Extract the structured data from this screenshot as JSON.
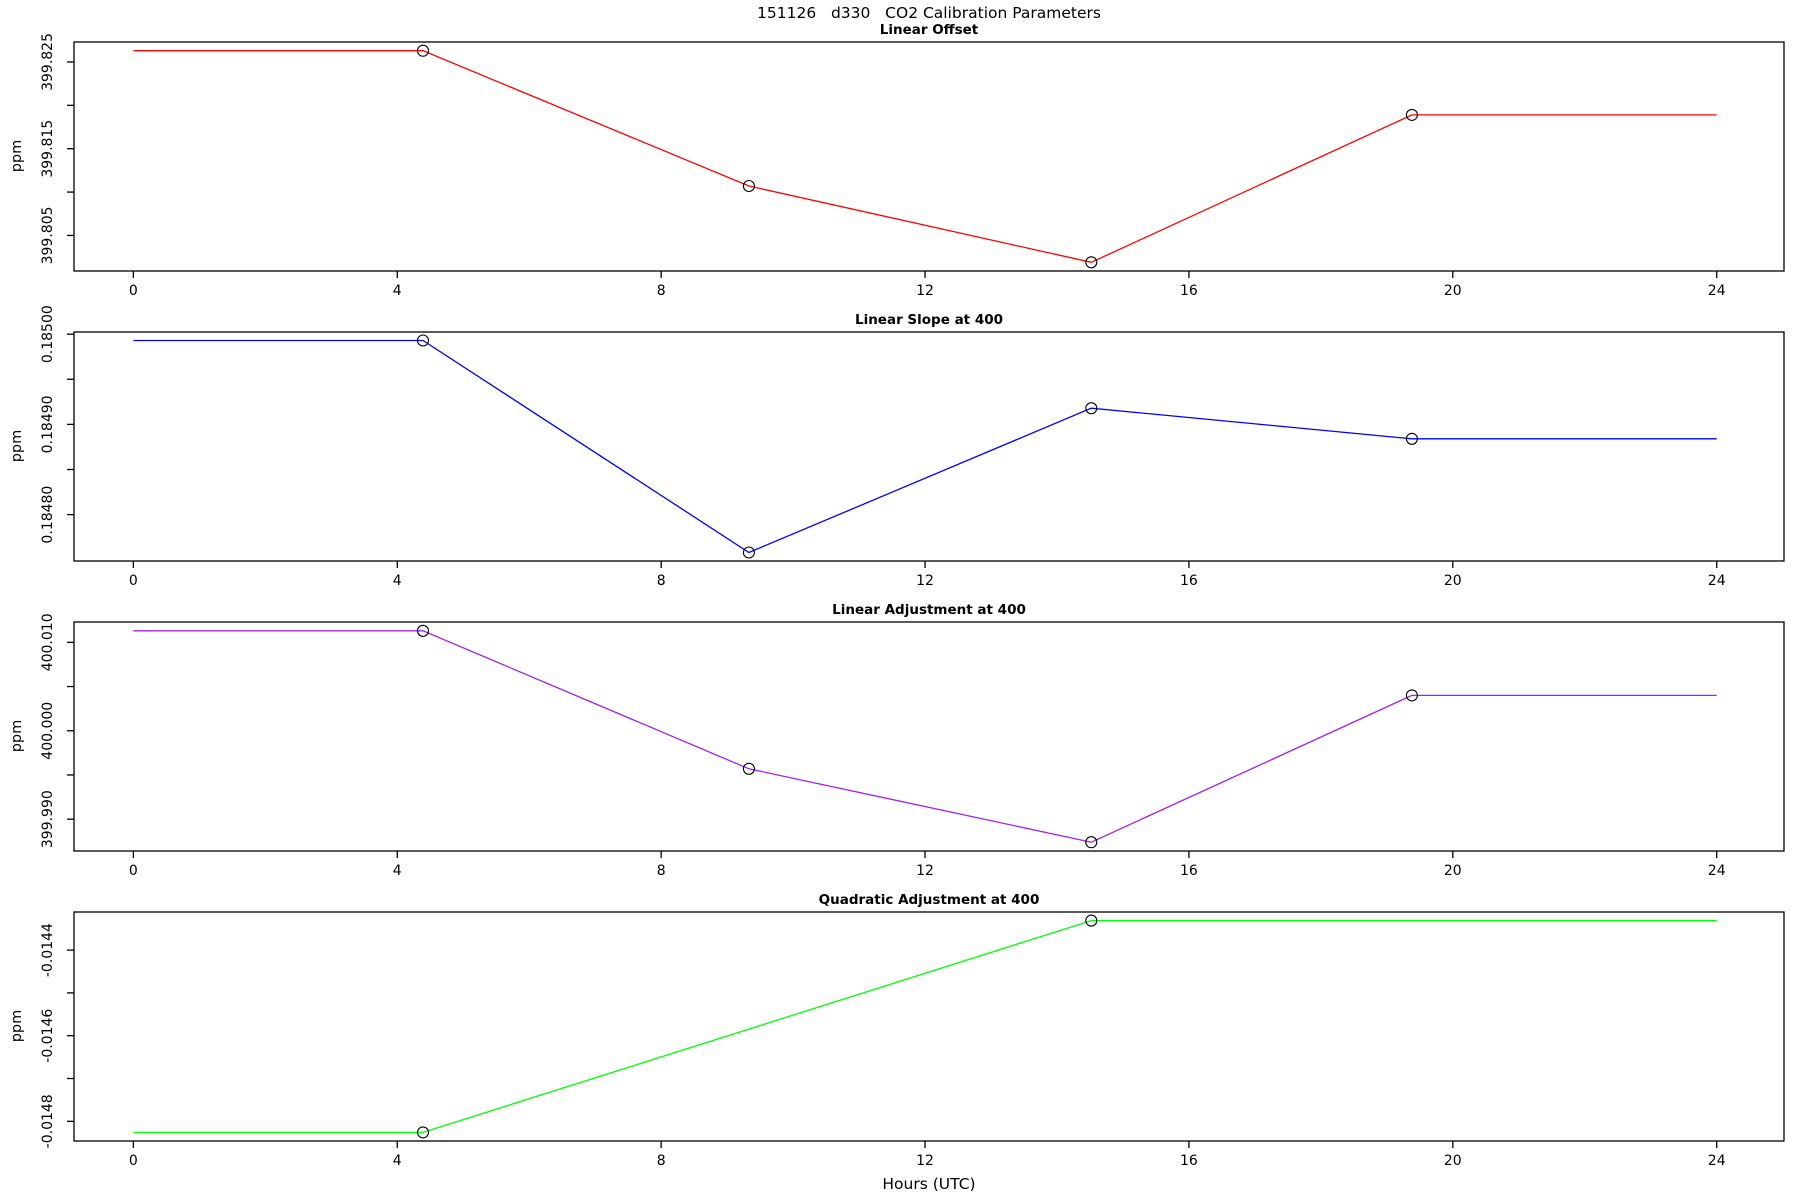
{
  "chart_data": {
    "type": "line",
    "title": "151126   d330   CO2 Calibration Parameters",
    "xlabel": "Hours (UTC)",
    "x_ticks": [
      0,
      4,
      8,
      12,
      16,
      20,
      24
    ],
    "xlim": [
      -0.9,
      25.02
    ],
    "grid": "off",
    "legend": "none",
    "axis_color": "#000000",
    "background_color": "#ffffff",
    "panels": [
      {
        "title": "Linear Offset",
        "ylabel": "ppm",
        "color": "#FF0000",
        "ylim": [
          399.8009,
          399.8273
        ],
        "yticks": [
          {
            "v": 399.805,
            "label": "399.805"
          },
          {
            "v": 399.81,
            "label": ""
          },
          {
            "v": 399.815,
            "label": "399.815"
          },
          {
            "v": 399.82,
            "label": ""
          },
          {
            "v": 399.825,
            "label": "399.825"
          }
        ],
        "line": [
          [
            0,
            399.8263
          ],
          [
            4.39,
            399.8263
          ],
          [
            9.33,
            399.8107
          ],
          [
            14.52,
            399.8019
          ],
          [
            19.38,
            399.8189
          ],
          [
            24,
            399.8189
          ]
        ],
        "points": [
          [
            4.39,
            399.8263
          ],
          [
            9.33,
            399.8107
          ],
          [
            14.52,
            399.8019
          ],
          [
            19.38,
            399.8189
          ]
        ]
      },
      {
        "title": "Linear Slope at 400",
        "ylabel": "ppm",
        "color": "#0000FF",
        "ylim": [
          0.1847486,
          0.1850024
        ],
        "yticks": [
          {
            "v": 0.1848,
            "label": "0.18480"
          },
          {
            "v": 0.18485,
            "label": ""
          },
          {
            "v": 0.1849,
            "label": "0.18490"
          },
          {
            "v": 0.18495,
            "label": ""
          },
          {
            "v": 0.185,
            "label": "0.18500"
          }
        ],
        "line": [
          [
            0,
            0.184993
          ],
          [
            4.39,
            0.184993
          ],
          [
            9.33,
            0.184758
          ],
          [
            14.52,
            0.184918
          ],
          [
            19.38,
            0.184884
          ],
          [
            24,
            0.184884
          ]
        ],
        "points": [
          [
            4.39,
            0.184993
          ],
          [
            9.33,
            0.184758
          ],
          [
            14.52,
            0.184918
          ],
          [
            19.38,
            0.184884
          ]
        ]
      },
      {
        "title": "Linear Adjustment at 400",
        "ylabel": "ppm",
        "color": "#A020F0",
        "ylim": [
          399.9864,
          400.0123
        ],
        "yticks": [
          {
            "v": 399.99,
            "label": "399.990"
          },
          {
            "v": 399.995,
            "label": ""
          },
          {
            "v": 400.0,
            "label": "400.000"
          },
          {
            "v": 400.005,
            "label": ""
          },
          {
            "v": 400.01,
            "label": "400.010"
          }
        ],
        "line": [
          [
            0,
            400.0113
          ],
          [
            4.39,
            400.0113
          ],
          [
            9.33,
            399.9957
          ],
          [
            14.52,
            399.9874
          ],
          [
            19.38,
            400.004
          ],
          [
            24,
            400.004
          ]
        ],
        "points": [
          [
            4.39,
            400.0113
          ],
          [
            9.33,
            399.9957
          ],
          [
            14.52,
            399.9874
          ],
          [
            19.38,
            400.004
          ]
        ]
      },
      {
        "title": "Quadratic Adjustment at 400",
        "ylabel": "ppm",
        "color": "#00FF00",
        "ylim": [
          -0.014846,
          -0.014311
        ],
        "yticks": [
          {
            "v": -0.0148,
            "label": "-0.0148"
          },
          {
            "v": -0.0147,
            "label": ""
          },
          {
            "v": -0.0146,
            "label": "-0.0146"
          },
          {
            "v": -0.0145,
            "label": ""
          },
          {
            "v": -0.0144,
            "label": "-0.0144"
          }
        ],
        "line": [
          [
            0,
            -0.014826
          ],
          [
            4.39,
            -0.014826
          ],
          [
            14.52,
            -0.014331
          ],
          [
            24,
            -0.014331
          ]
        ],
        "points": [
          [
            4.39,
            -0.014826
          ],
          [
            14.52,
            -0.014331
          ]
        ]
      }
    ]
  }
}
